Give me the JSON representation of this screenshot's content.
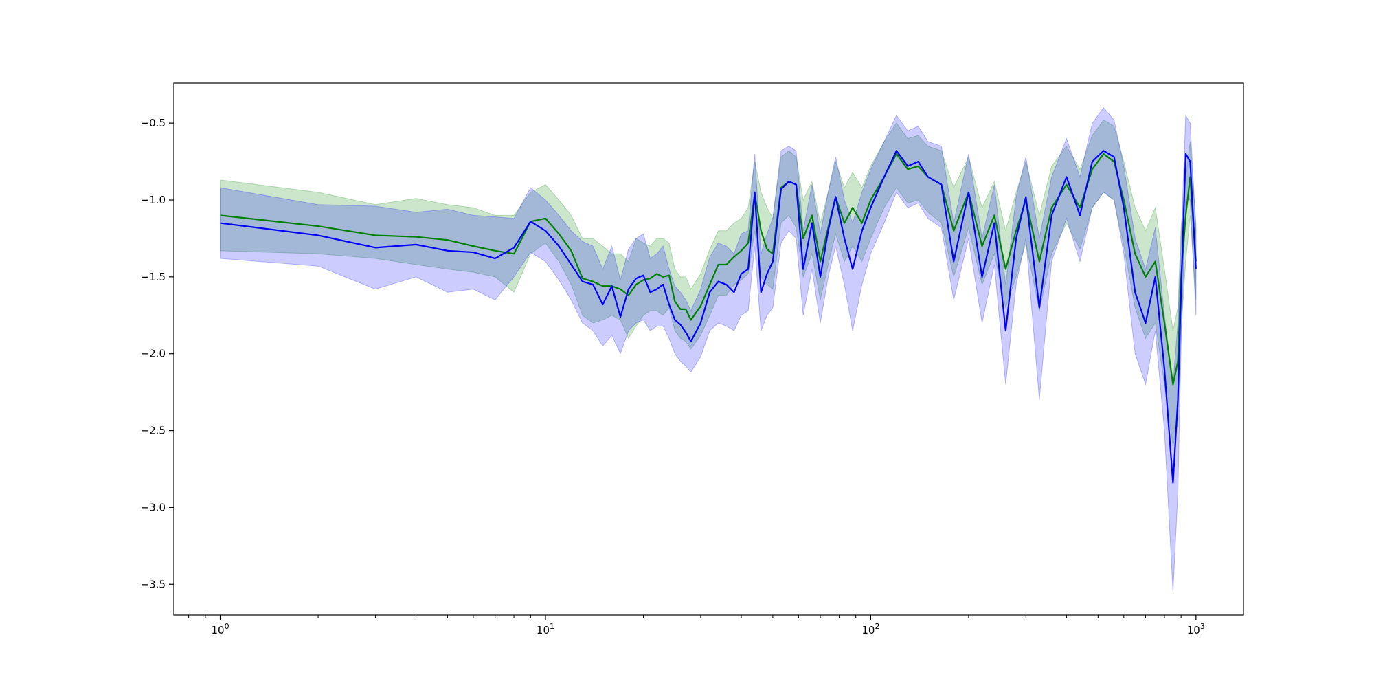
{
  "chart_data": {
    "type": "line",
    "title": "",
    "xlabel": "",
    "ylabel": "",
    "xscale": "log",
    "xlim": [
      0.72,
      1400
    ],
    "ylim": [
      -3.7,
      -0.24
    ],
    "grid": false,
    "legend": "none",
    "x_ticks": [
      {
        "value": 1,
        "base": "10",
        "exp": "0"
      },
      {
        "value": 10,
        "base": "10",
        "exp": "1"
      },
      {
        "value": 100,
        "base": "10",
        "exp": "2"
      },
      {
        "value": 1000,
        "base": "10",
        "exp": "3"
      }
    ],
    "y_ticks": [
      {
        "value": -0.5,
        "label": "−0.5"
      },
      {
        "value": -1.0,
        "label": "−1.0"
      },
      {
        "value": -1.5,
        "label": "−1.5"
      },
      {
        "value": -2.0,
        "label": "−2.0"
      },
      {
        "value": -2.5,
        "label": "−2.5"
      },
      {
        "value": -3.0,
        "label": "−3.0"
      },
      {
        "value": -3.5,
        "label": "−3.5"
      }
    ],
    "series": [
      {
        "color": "#008000",
        "band_color": "#008000",
        "band_opacity": 0.2,
        "x": [
          1,
          2,
          3,
          4,
          5,
          6,
          7,
          8,
          9,
          10,
          11,
          12,
          13,
          14,
          15,
          16,
          17,
          18,
          19,
          20,
          21,
          22,
          23,
          24,
          25,
          26,
          27,
          28,
          30,
          32,
          34,
          36,
          38,
          40,
          42,
          44,
          46,
          48,
          50,
          53,
          56,
          59,
          62,
          66,
          70,
          74,
          78,
          83,
          88,
          94,
          100,
          110,
          120,
          130,
          140,
          150,
          165,
          180,
          200,
          220,
          240,
          260,
          280,
          300,
          330,
          360,
          400,
          440,
          480,
          520,
          560,
          600,
          650,
          700,
          750,
          800,
          850,
          880,
          900,
          930,
          960,
          1000
        ],
        "y": [
          -1.1,
          -1.17,
          -1.23,
          -1.24,
          -1.26,
          -1.3,
          -1.33,
          -1.35,
          -1.14,
          -1.12,
          -1.22,
          -1.33,
          -1.51,
          -1.53,
          -1.56,
          -1.56,
          -1.58,
          -1.62,
          -1.55,
          -1.52,
          -1.51,
          -1.48,
          -1.5,
          -1.49,
          -1.66,
          -1.71,
          -1.71,
          -1.78,
          -1.69,
          -1.55,
          -1.42,
          -1.42,
          -1.37,
          -1.33,
          -1.28,
          -0.96,
          -1.2,
          -1.32,
          -1.35,
          -0.92,
          -0.88,
          -0.9,
          -1.25,
          -1.1,
          -1.4,
          -1.18,
          -0.98,
          -1.15,
          -1.05,
          -1.15,
          -1.0,
          -0.85,
          -0.7,
          -0.8,
          -0.78,
          -0.85,
          -0.9,
          -1.2,
          -0.95,
          -1.3,
          -1.1,
          -1.45,
          -1.2,
          -1.0,
          -1.4,
          -1.05,
          -0.9,
          -1.05,
          -0.8,
          -0.7,
          -0.75,
          -1.0,
          -1.35,
          -1.5,
          -1.4,
          -1.8,
          -2.2,
          -2.05,
          -1.5,
          -1.1,
          -0.85,
          -1.4
        ],
        "lower": [
          -1.33,
          -1.35,
          -1.38,
          -1.42,
          -1.45,
          -1.47,
          -1.5,
          -1.6,
          -1.35,
          -1.28,
          -1.4,
          -1.55,
          -1.75,
          -1.8,
          -1.78,
          -1.75,
          -1.78,
          -1.9,
          -1.82,
          -1.75,
          -1.72,
          -1.72,
          -1.75,
          -1.7,
          -1.85,
          -1.9,
          -1.92,
          -1.97,
          -1.88,
          -1.75,
          -1.62,
          -1.62,
          -1.55,
          -1.52,
          -1.48,
          -1.2,
          -1.5,
          -1.55,
          -1.58,
          -1.15,
          -1.1,
          -1.18,
          -1.5,
          -1.35,
          -1.65,
          -1.42,
          -1.22,
          -1.4,
          -1.3,
          -1.4,
          -1.25,
          -1.05,
          -0.92,
          -1.02,
          -1.0,
          -1.08,
          -1.15,
          -1.5,
          -1.18,
          -1.55,
          -1.35,
          -1.7,
          -1.5,
          -1.28,
          -1.72,
          -1.35,
          -1.15,
          -1.32,
          -1.05,
          -0.95,
          -1.0,
          -1.3,
          -1.7,
          -1.9,
          -1.8,
          -2.2,
          -2.6,
          -2.45,
          -1.85,
          -1.4,
          -1.1,
          -1.65
        ],
        "upper": [
          -0.87,
          -0.95,
          -1.03,
          -0.99,
          -1.03,
          -1.05,
          -1.1,
          -1.1,
          -0.95,
          -0.9,
          -1.0,
          -1.1,
          -1.25,
          -1.25,
          -1.3,
          -1.35,
          -1.35,
          -1.4,
          -1.25,
          -1.28,
          -1.3,
          -1.25,
          -1.25,
          -1.28,
          -1.45,
          -1.5,
          -1.5,
          -1.58,
          -1.48,
          -1.32,
          -1.2,
          -1.2,
          -1.15,
          -1.12,
          -1.05,
          -0.75,
          -0.95,
          -1.05,
          -1.12,
          -0.72,
          -0.68,
          -0.72,
          -1.0,
          -0.88,
          -1.15,
          -0.95,
          -0.75,
          -0.92,
          -0.82,
          -0.92,
          -0.78,
          -0.62,
          -0.5,
          -0.6,
          -0.58,
          -0.65,
          -0.68,
          -0.92,
          -0.72,
          -1.05,
          -0.88,
          -1.2,
          -0.95,
          -0.75,
          -1.1,
          -0.78,
          -0.65,
          -0.8,
          -0.58,
          -0.48,
          -0.52,
          -0.75,
          -1.05,
          -1.2,
          -1.05,
          -1.45,
          -1.85,
          -1.7,
          -1.18,
          -0.85,
          -0.62,
          -1.15
        ]
      },
      {
        "color": "#0000ff",
        "band_color": "#0000ff",
        "band_opacity": 0.2,
        "x": [
          1,
          2,
          3,
          4,
          5,
          6,
          7,
          8,
          9,
          10,
          11,
          12,
          13,
          14,
          15,
          16,
          17,
          18,
          19,
          20,
          21,
          22,
          23,
          24,
          25,
          26,
          27,
          28,
          30,
          32,
          34,
          36,
          38,
          40,
          42,
          44,
          46,
          48,
          50,
          53,
          56,
          59,
          62,
          66,
          70,
          74,
          78,
          83,
          88,
          94,
          100,
          110,
          120,
          130,
          140,
          150,
          165,
          180,
          200,
          220,
          240,
          260,
          280,
          300,
          330,
          360,
          400,
          440,
          480,
          520,
          560,
          600,
          650,
          700,
          750,
          800,
          850,
          880,
          900,
          930,
          960,
          1000
        ],
        "y": [
          -1.15,
          -1.23,
          -1.31,
          -1.29,
          -1.33,
          -1.34,
          -1.38,
          -1.31,
          -1.14,
          -1.2,
          -1.3,
          -1.42,
          -1.53,
          -1.55,
          -1.68,
          -1.56,
          -1.76,
          -1.58,
          -1.51,
          -1.49,
          -1.6,
          -1.58,
          -1.55,
          -1.68,
          -1.78,
          -1.81,
          -1.86,
          -1.92,
          -1.8,
          -1.6,
          -1.53,
          -1.55,
          -1.6,
          -1.48,
          -1.45,
          -0.95,
          -1.6,
          -1.48,
          -1.4,
          -0.93,
          -0.88,
          -0.9,
          -1.45,
          -1.15,
          -1.5,
          -1.2,
          -0.98,
          -1.25,
          -1.45,
          -1.2,
          -1.05,
          -0.85,
          -0.68,
          -0.78,
          -0.75,
          -0.85,
          -0.9,
          -1.4,
          -0.95,
          -1.5,
          -1.15,
          -1.85,
          -1.25,
          -0.98,
          -1.7,
          -1.1,
          -0.85,
          -1.1,
          -0.75,
          -0.68,
          -0.72,
          -1.05,
          -1.6,
          -1.8,
          -1.5,
          -2.1,
          -2.84,
          -2.3,
          -1.6,
          -0.7,
          -0.75,
          -1.45
        ],
        "lower": [
          -1.38,
          -1.43,
          -1.58,
          -1.5,
          -1.6,
          -1.58,
          -1.65,
          -1.5,
          -1.34,
          -1.4,
          -1.52,
          -1.65,
          -1.8,
          -1.85,
          -1.95,
          -1.88,
          -2.0,
          -1.85,
          -1.8,
          -1.78,
          -1.85,
          -1.82,
          -1.82,
          -1.9,
          -2.0,
          -2.05,
          -2.08,
          -2.12,
          -2.02,
          -1.85,
          -1.8,
          -1.82,
          -1.85,
          -1.75,
          -1.72,
          -1.3,
          -1.85,
          -1.75,
          -1.7,
          -1.28,
          -1.2,
          -1.25,
          -1.75,
          -1.45,
          -1.8,
          -1.5,
          -1.3,
          -1.55,
          -1.85,
          -1.55,
          -1.35,
          -1.15,
          -0.95,
          -1.05,
          -1.02,
          -1.12,
          -1.18,
          -1.65,
          -1.25,
          -1.8,
          -1.42,
          -2.2,
          -1.55,
          -1.25,
          -2.3,
          -1.4,
          -1.12,
          -1.4,
          -1.05,
          -0.95,
          -1.0,
          -1.35,
          -2.0,
          -2.2,
          -1.85,
          -2.5,
          -3.55,
          -2.9,
          -1.95,
          -1.0,
          -1.0,
          -1.75
        ],
        "upper": [
          -0.92,
          -1.03,
          -1.04,
          -1.08,
          -1.06,
          -1.1,
          -1.11,
          -1.12,
          -0.92,
          -1.0,
          -1.1,
          -1.2,
          -1.27,
          -1.3,
          -1.45,
          -1.3,
          -1.52,
          -1.32,
          -1.25,
          -1.22,
          -1.38,
          -1.35,
          -1.3,
          -1.45,
          -1.56,
          -1.6,
          -1.65,
          -1.72,
          -1.58,
          -1.37,
          -1.28,
          -1.3,
          -1.35,
          -1.22,
          -1.2,
          -0.7,
          -1.35,
          -1.22,
          -1.12,
          -0.68,
          -0.65,
          -0.68,
          -1.2,
          -0.9,
          -1.22,
          -0.95,
          -0.72,
          -1.0,
          -1.15,
          -0.95,
          -0.8,
          -0.62,
          -0.45,
          -0.55,
          -0.52,
          -0.62,
          -0.65,
          -1.15,
          -0.7,
          -1.25,
          -0.9,
          -1.55,
          -0.98,
          -0.72,
          -1.25,
          -0.85,
          -0.6,
          -0.85,
          -0.5,
          -0.4,
          -0.48,
          -0.78,
          -1.25,
          -1.45,
          -1.18,
          -1.75,
          -2.2,
          -1.8,
          -1.28,
          -0.45,
          -0.5,
          -1.2
        ]
      }
    ]
  }
}
